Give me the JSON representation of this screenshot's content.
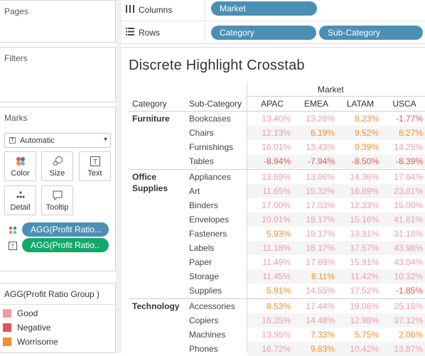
{
  "colors": {
    "good": "#f29aa6",
    "negative": "#e15759",
    "worrisome": "#f28e2b",
    "pill_blue": "#4b8fb5",
    "pill_green": "#13a86b"
  },
  "pages": {
    "title": "Pages"
  },
  "filters": {
    "title": "Filters"
  },
  "marks": {
    "title": "Marks",
    "mark_type": "Automatic",
    "buttons": [
      {
        "label": "Color",
        "icon": "color-dots-icon"
      },
      {
        "label": "Size",
        "icon": "size-icon"
      },
      {
        "label": "Text",
        "icon": "text-icon"
      },
      {
        "label": "Detail",
        "icon": "detail-dots-icon"
      },
      {
        "label": "Tooltip",
        "icon": "tooltip-icon"
      }
    ],
    "pills": [
      {
        "label": "AGG(Profit Ratio...",
        "encoding": "color"
      },
      {
        "label": "AGG(Profit Ratio..",
        "encoding": "text"
      }
    ]
  },
  "legend": {
    "title": "AGG(Profit Ratio Group )",
    "items": [
      {
        "label": "Good",
        "color": "#f29aa6"
      },
      {
        "label": "Negative",
        "color": "#e15759"
      },
      {
        "label": "Worrisome",
        "color": "#f28e2b"
      }
    ]
  },
  "shelves": {
    "columns": {
      "label": "Columns",
      "icon": "columns-icon",
      "pills": [
        "Market"
      ]
    },
    "rows": {
      "label": "Rows",
      "icon": "rows-icon",
      "pills": [
        "Category",
        "Sub-Category"
      ]
    }
  },
  "view": {
    "title": "Discrete Highlight Crosstab",
    "market_header": "Market",
    "category_header": "Category",
    "subcategory_header": "Sub-Category",
    "markets": [
      "APAC",
      "EMEA",
      "LATAM",
      "USCA"
    ],
    "groups": [
      {
        "category": "Furniture",
        "rows": [
          {
            "sub": "Bookcases",
            "values": [
              "13.40%",
              "13.28%",
              "8.23%",
              "-1.77%"
            ],
            "status": [
              "good",
              "good",
              "worrisome",
              "negative"
            ]
          },
          {
            "sub": "Chairs",
            "values": [
              "12.13%",
              "6.19%",
              "9.52%",
              "8.27%"
            ],
            "status": [
              "good",
              "worrisome",
              "worrisome",
              "worrisome"
            ]
          },
          {
            "sub": "Furnishings",
            "values": [
              "16.01%",
              "13.43%",
              "0.39%",
              "14.25%"
            ],
            "status": [
              "good",
              "good",
              "worrisome",
              "good"
            ]
          },
          {
            "sub": "Tables",
            "values": [
              "-8.94%",
              "-7.94%",
              "-8.50%",
              "-8.39%"
            ],
            "status": [
              "negative",
              "negative",
              "negative",
              "negative"
            ]
          }
        ]
      },
      {
        "category": "Office Supplies",
        "rows": [
          {
            "sub": "Appliances",
            "values": [
              "13.69%",
              "13.06%",
              "14.36%",
              "17.64%"
            ],
            "status": [
              "good",
              "good",
              "good",
              "good"
            ]
          },
          {
            "sub": "Art",
            "values": [
              "11.65%",
              "15.32%",
              "16.89%",
              "23.81%"
            ],
            "status": [
              "good",
              "good",
              "good",
              "good"
            ]
          },
          {
            "sub": "Binders",
            "values": [
              "17.00%",
              "17.03%",
              "12.33%",
              "15.00%"
            ],
            "status": [
              "good",
              "good",
              "good",
              "good"
            ]
          },
          {
            "sub": "Envelopes",
            "values": [
              "10.01%",
              "18.17%",
              "15.16%",
              "41.81%"
            ],
            "status": [
              "good",
              "good",
              "good",
              "good"
            ]
          },
          {
            "sub": "Fasteners",
            "values": [
              "5.93%",
              "19.17%",
              "13.31%",
              "31.18%"
            ],
            "status": [
              "worrisome",
              "good",
              "good",
              "good"
            ]
          },
          {
            "sub": "Labels",
            "values": [
              "11.18%",
              "18.17%",
              "17.57%",
              "43.98%"
            ],
            "status": [
              "good",
              "good",
              "good",
              "good"
            ]
          },
          {
            "sub": "Paper",
            "values": [
              "11.49%",
              "17.89%",
              "15.91%",
              "43.04%"
            ],
            "status": [
              "good",
              "good",
              "good",
              "good"
            ]
          },
          {
            "sub": "Storage",
            "values": [
              "11.45%",
              "8.11%",
              "11.42%",
              "10.32%"
            ],
            "status": [
              "good",
              "worrisome",
              "good",
              "good"
            ]
          },
          {
            "sub": "Supplies",
            "values": [
              "5.91%",
              "14.55%",
              "17.52%",
              "-1.85%"
            ],
            "status": [
              "worrisome",
              "good",
              "good",
              "negative"
            ]
          }
        ]
      },
      {
        "category": "Technology",
        "rows": [
          {
            "sub": "Accessories",
            "values": [
              "8.53%",
              "17.44%",
              "19.06%",
              "25.15%"
            ],
            "status": [
              "worrisome",
              "good",
              "good",
              "good"
            ]
          },
          {
            "sub": "Copiers",
            "values": [
              "16.35%",
              "14.48%",
              "12.98%",
              "37.12%"
            ],
            "status": [
              "good",
              "good",
              "good",
              "good"
            ]
          },
          {
            "sub": "Machines",
            "values": [
              "13.95%",
              "7.33%",
              "5.75%",
              "2.06%"
            ],
            "status": [
              "good",
              "worrisome",
              "worrisome",
              "worrisome"
            ]
          },
          {
            "sub": "Phones",
            "values": [
              "16.72%",
              "9.83%",
              "10.42%",
              "13.87%"
            ],
            "status": [
              "good",
              "worrisome",
              "good",
              "good"
            ]
          }
        ]
      }
    ]
  }
}
